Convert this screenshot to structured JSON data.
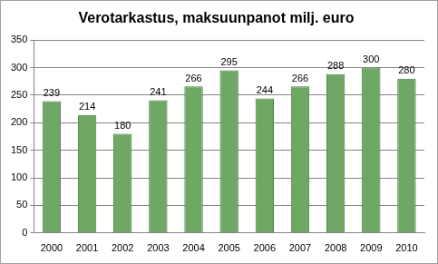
{
  "chart_data": {
    "type": "bar",
    "title": "Verotarkastus, maksuunpanot milj. euro",
    "categories": [
      "2000",
      "2001",
      "2002",
      "2003",
      "2004",
      "2005",
      "2006",
      "2007",
      "2008",
      "2009",
      "2010"
    ],
    "values": [
      239,
      214,
      180,
      241,
      266,
      295,
      244,
      266,
      288,
      300,
      280
    ],
    "color": "#6ea864",
    "ylim": [
      0,
      350
    ],
    "yticks": [
      0,
      50,
      100,
      150,
      200,
      250,
      300,
      350
    ],
    "grid": true,
    "data_labels": true
  }
}
